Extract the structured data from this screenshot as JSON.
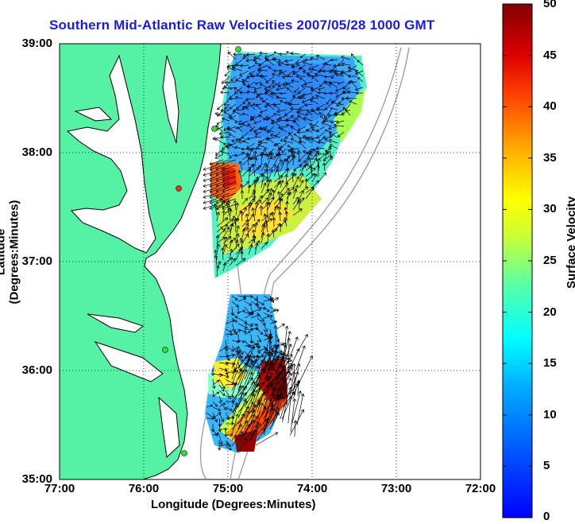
{
  "map": {
    "title": "Southern Mid-Atlantic Raw Velocities 2007/05/28 1000 GMT",
    "xlabel": "Longitude (Degrees:Minutes)",
    "ylabel": "Latitude (Degrees:Minutes)",
    "x_ticks": [
      "77:00",
      "76:00",
      "75:00",
      "74:00",
      "73:00",
      "72:00"
    ],
    "y_ticks": [
      "39:00",
      "38:00",
      "37:00",
      "36:00",
      "35:00"
    ],
    "x_range": [
      -77,
      -72
    ],
    "y_range": [
      35,
      39
    ],
    "grid": "dotted",
    "land_color": "#55f2a6",
    "coast_color": "#000000"
  },
  "colorbar": {
    "label": "Surface Velocity (cm/s)",
    "ticks": [
      "50",
      "45",
      "40",
      "35",
      "30",
      "25",
      "20",
      "15",
      "10",
      "5",
      "0"
    ],
    "range": [
      0,
      50
    ],
    "colormap": "jet"
  }
}
